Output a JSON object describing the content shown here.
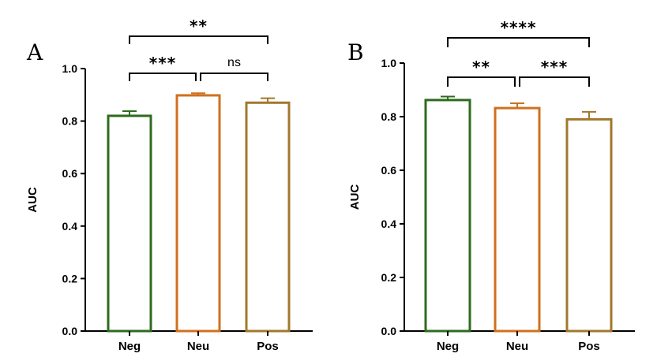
{
  "chart_data": [
    {
      "type": "bar",
      "panel": "A",
      "categories": [
        "Neg",
        "Neu",
        "Pos"
      ],
      "values": [
        0.82,
        0.898,
        0.87
      ],
      "errors": [
        0.018,
        0.008,
        0.017
      ],
      "colors": [
        "#2e6b1f",
        "#d0701e",
        "#a2782c"
      ],
      "ylabel": "AUC",
      "ylim": [
        0,
        1.0
      ],
      "yticks": [
        "0.0",
        "0.2",
        "0.4",
        "0.6",
        "0.8",
        "1.0"
      ],
      "grid": false,
      "significance": [
        {
          "from": 0,
          "to": 1,
          "label": "***",
          "y": 0.95
        },
        {
          "from": 1,
          "to": 2,
          "label": "ns",
          "y": 0.95
        },
        {
          "from": 0,
          "to": 2,
          "label": "**",
          "y": 1.12
        }
      ]
    },
    {
      "type": "bar",
      "panel": "B",
      "categories": [
        "Neg",
        "Neu",
        "Pos"
      ],
      "values": [
        0.862,
        0.832,
        0.79
      ],
      "errors": [
        0.013,
        0.018,
        0.028
      ],
      "colors": [
        "#2e6b1f",
        "#d0701e",
        "#a2782c"
      ],
      "ylabel": "AUC",
      "ylim": [
        0,
        1.0
      ],
      "yticks": [
        "0.0",
        "0.2",
        "0.4",
        "0.6",
        "0.8",
        "1.0"
      ],
      "grid": false,
      "significance": [
        {
          "from": 0,
          "to": 1,
          "label": "**",
          "y": 0.95
        },
        {
          "from": 1,
          "to": 2,
          "label": "***",
          "y": 0.95
        },
        {
          "from": 0,
          "to": 2,
          "label": "****",
          "y": 1.12
        }
      ]
    }
  ]
}
